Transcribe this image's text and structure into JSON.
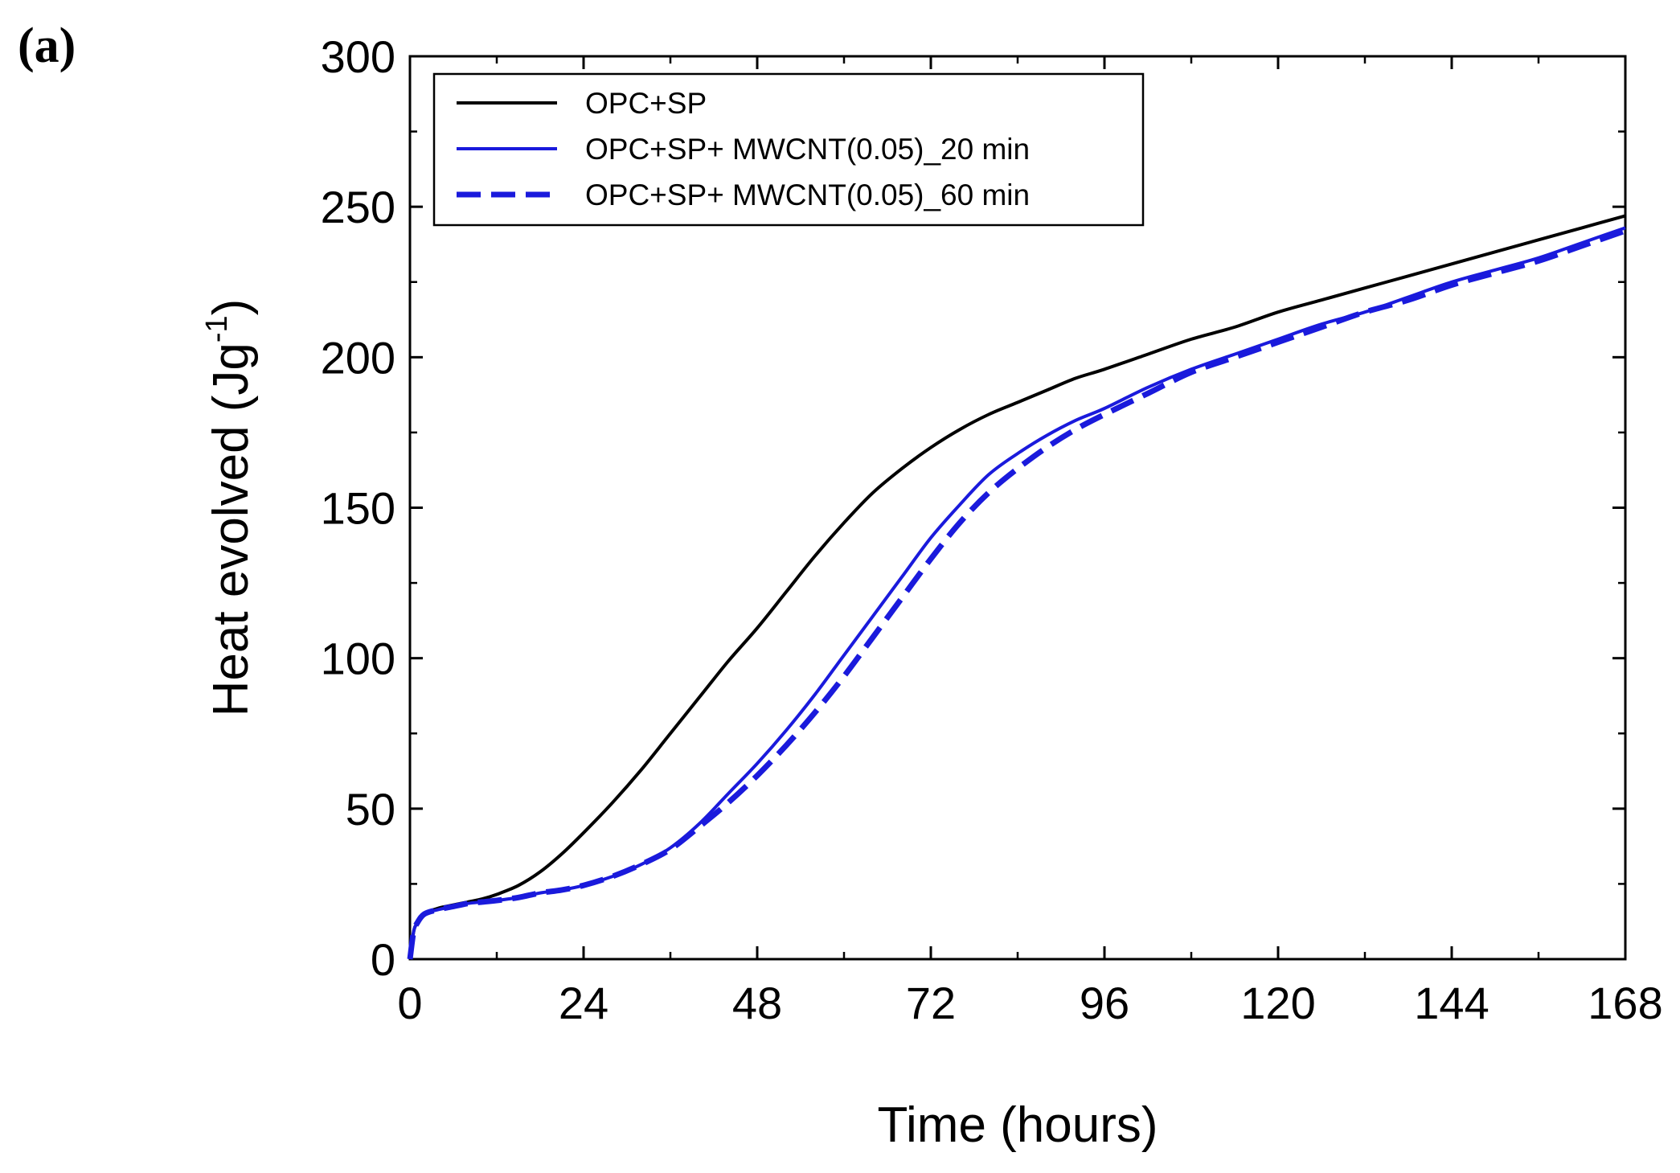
{
  "panel_label": "(a)",
  "chart_data": {
    "type": "line",
    "title": "",
    "xlabel": "Time (hours)",
    "ylabel_main": "Heat evolved (Jg",
    "ylabel_sup": "-1",
    "ylabel_close": ")",
    "xlim": [
      0,
      168
    ],
    "ylim": [
      0,
      300
    ],
    "xticks": [
      0,
      24,
      48,
      72,
      96,
      120,
      144,
      168
    ],
    "yticks": [
      0,
      50,
      100,
      150,
      200,
      250,
      300
    ],
    "grid": false,
    "legend_position": "top-left",
    "series": [
      {
        "name": "OPC+SP",
        "color": "#000000",
        "dash": "solid",
        "x": [
          0,
          0.5,
          1,
          2,
          4,
          6,
          8,
          10,
          12,
          15,
          18,
          21,
          24,
          28,
          32,
          36,
          40,
          44,
          48,
          52,
          56,
          60,
          64,
          68,
          72,
          76,
          80,
          84,
          88,
          92,
          96,
          102,
          108,
          114,
          120,
          126,
          132,
          138,
          144,
          150,
          156,
          162,
          168
        ],
        "y": [
          0,
          9,
          12,
          15,
          17,
          18,
          19,
          20,
          21.5,
          24.5,
          29,
          35,
          42,
          52,
          63,
          75,
          87,
          99,
          110,
          122,
          134,
          145,
          155,
          163,
          170,
          176,
          181,
          185,
          189,
          193,
          196,
          201,
          206,
          210,
          215,
          219,
          223,
          227,
          231,
          235,
          239,
          243,
          247
        ]
      },
      {
        "name": "OPC+SP+ MWCNT(0.05)_20 min",
        "color": "#1a1adc",
        "dash": "solid",
        "x": [
          0,
          0.5,
          1,
          2,
          4,
          6,
          8,
          10,
          12,
          15,
          18,
          21,
          24,
          28,
          32,
          36,
          40,
          44,
          48,
          52,
          56,
          60,
          64,
          68,
          72,
          76,
          80,
          84,
          88,
          92,
          96,
          102,
          108,
          114,
          120,
          126,
          132,
          138,
          144,
          150,
          156,
          162,
          168
        ],
        "y": [
          0,
          9,
          12,
          15,
          16.5,
          17.5,
          18.5,
          19,
          19.5,
          20.5,
          22,
          23,
          24.5,
          27.5,
          31.5,
          37,
          45,
          55,
          65,
          76,
          88,
          101,
          114,
          127,
          140,
          151,
          161,
          168,
          174,
          179,
          183,
          190,
          196,
          201,
          206,
          211,
          215,
          220,
          225,
          229,
          233,
          238,
          243
        ]
      },
      {
        "name": "OPC+SP+ MWCNT(0.05)_60 min",
        "color": "#1a1adc",
        "dash": "dashed",
        "x": [
          0,
          0.5,
          1,
          2,
          4,
          6,
          8,
          10,
          12,
          15,
          18,
          21,
          24,
          28,
          32,
          36,
          40,
          44,
          48,
          52,
          56,
          60,
          64,
          68,
          72,
          76,
          80,
          84,
          88,
          92,
          96,
          102,
          108,
          114,
          120,
          126,
          132,
          138,
          144,
          150,
          156,
          162,
          168
        ],
        "y": [
          0,
          9,
          12,
          15,
          16.5,
          17.5,
          18.5,
          19,
          19.5,
          20.5,
          22,
          23,
          24.5,
          27.5,
          31.5,
          36.5,
          44,
          52,
          61,
          71,
          82,
          94,
          107,
          120,
          133,
          145,
          155,
          163,
          170,
          176,
          181,
          188,
          195,
          200,
          205,
          210,
          215,
          219,
          224,
          228,
          232,
          237,
          242
        ]
      }
    ]
  }
}
